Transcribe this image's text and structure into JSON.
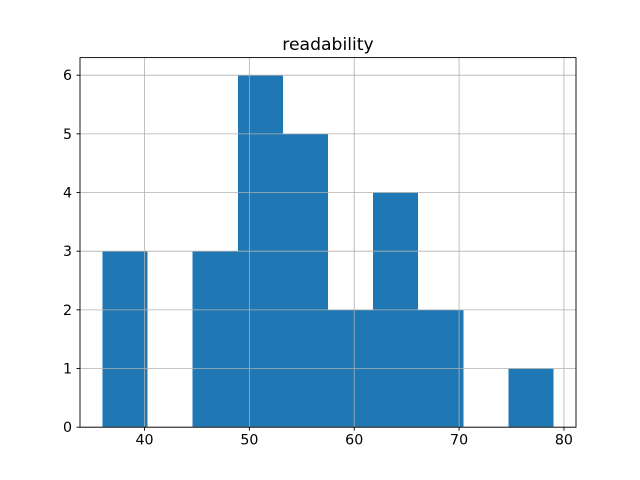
{
  "chart_data": {
    "type": "bar",
    "subtype": "histogram",
    "title": "readability",
    "xlabel": "",
    "ylabel": "",
    "bin_edges": [
      36.0,
      40.3,
      44.6,
      48.9,
      53.2,
      57.5,
      61.8,
      66.1,
      70.4,
      74.7,
      79.0
    ],
    "counts": [
      3,
      0,
      3,
      6,
      5,
      2,
      4,
      2,
      0,
      1
    ],
    "xticks": [
      40,
      50,
      60,
      70,
      80
    ],
    "yticks": [
      0,
      1,
      2,
      3,
      4,
      5,
      6
    ],
    "xlim": [
      33.85,
      81.15
    ],
    "ylim": [
      0,
      6.3
    ],
    "grid": true,
    "grid_on_top_of_bars": true,
    "legend_position": "none",
    "bar_color": "#1f77b4",
    "grid_color": "#b0b0b0",
    "spine_color": "#000000",
    "background_color": "#ffffff"
  }
}
